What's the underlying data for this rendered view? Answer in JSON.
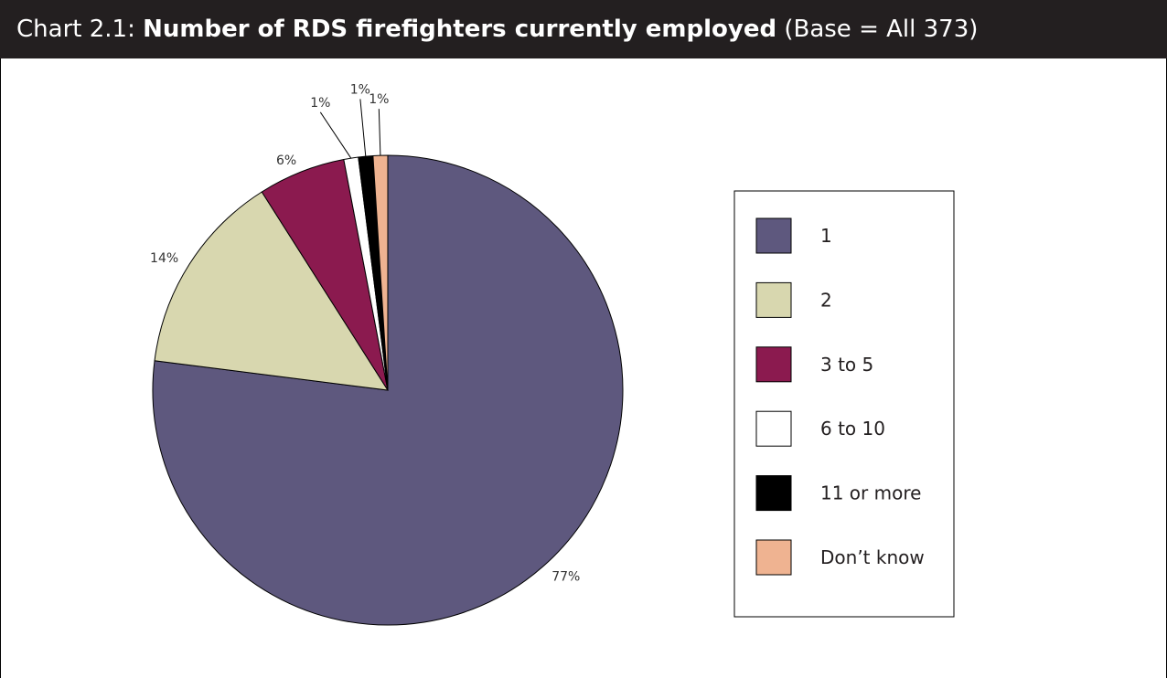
{
  "title": {
    "prefix": "Chart 2.1: ",
    "main": "Number of RDS firefighters currently employed",
    "suffix": " (Base = All 373)"
  },
  "chart_data": {
    "type": "pie",
    "title": "Chart 2.1: Number of RDS firefighters currently employed (Base = All 373)",
    "start_angle_deg": 0,
    "direction": "clockwise",
    "legend_position": "right",
    "slices": [
      {
        "label": "1",
        "value": 77,
        "display": "77%",
        "color": "#5e587e"
      },
      {
        "label": "2",
        "value": 14,
        "display": "14%",
        "color": "#d8d7af"
      },
      {
        "label": "3 to 5",
        "value": 6,
        "display": "6%",
        "color": "#8b1a4f"
      },
      {
        "label": "6 to 10",
        "value": 1,
        "display": "1%",
        "color": "#ffffff"
      },
      {
        "label": "11 or more",
        "value": 1,
        "display": "1%",
        "color": "#000000"
      },
      {
        "label": "Don’t know",
        "value": 1,
        "display": "1%",
        "color": "#efb391"
      }
    ]
  }
}
